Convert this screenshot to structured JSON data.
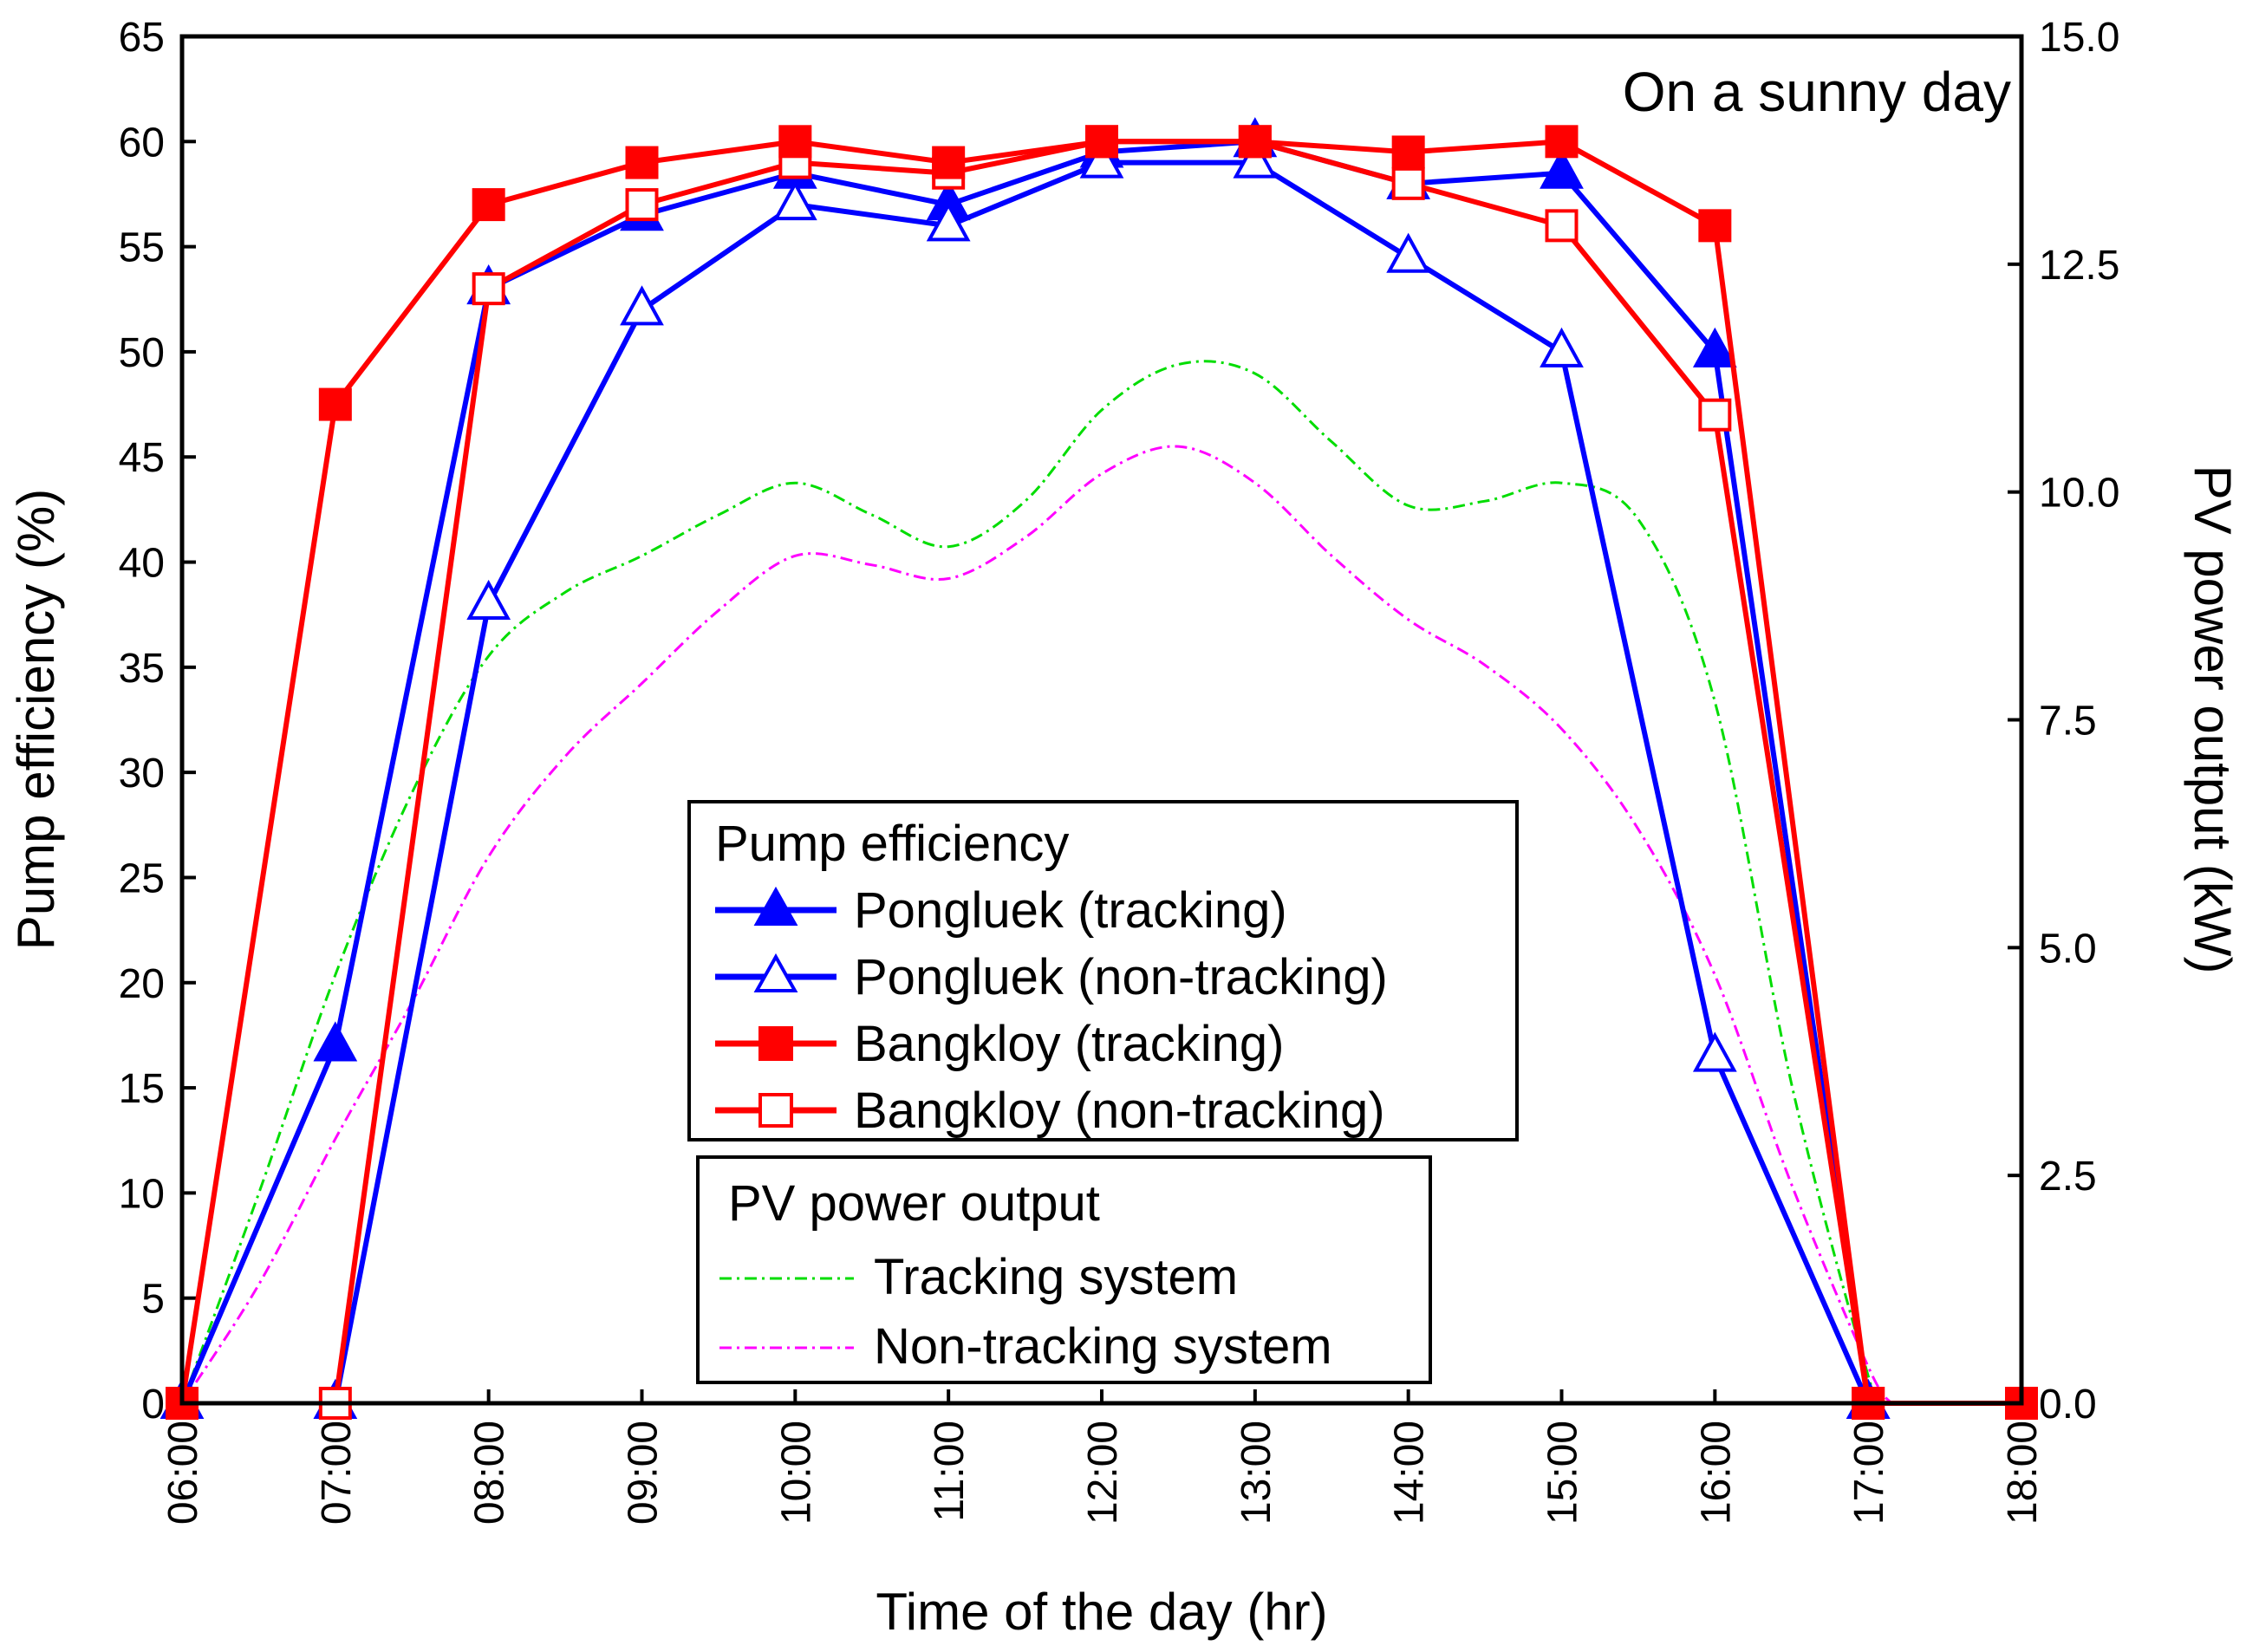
{
  "chart_data": {
    "type": "line",
    "annotation": "On a sunny day",
    "xlabel": "Time of the day (hr)",
    "ylabel_left": "Pump efficiency (%)",
    "ylabel_right": "PV power output (kW)",
    "x_ticks": [
      "06:00",
      "07:00",
      "08:00",
      "09:00",
      "10:00",
      "11:00",
      "12:00",
      "13:00",
      "14:00",
      "15:00",
      "16:00",
      "17:00",
      "18:00"
    ],
    "ylim_left": [
      0,
      65
    ],
    "yticks_left": [
      "0",
      "5",
      "10",
      "15",
      "20",
      "25",
      "30",
      "35",
      "40",
      "45",
      "50",
      "55",
      "60",
      "65"
    ],
    "ylim_right": [
      0,
      15
    ],
    "yticks_right": [
      "0.0",
      "2.5",
      "5.0",
      "7.5",
      "10.0",
      "12.5",
      "15.0"
    ],
    "pump_legend_title": "Pump efficiency",
    "pv_legend_title": "PV power output",
    "pump_series": [
      {
        "name": "Pongluek (tracking)",
        "color": "#0000ff",
        "marker": "triangle",
        "filled": true,
        "values": [
          0,
          17,
          53,
          56.5,
          58.5,
          57,
          59.5,
          60,
          58,
          58.5,
          50,
          0,
          null
        ]
      },
      {
        "name": "Pongluek (non-tracking)",
        "color": "#0000ff",
        "marker": "triangle",
        "filled": false,
        "values": [
          null,
          0,
          38,
          52,
          57,
          56,
          59,
          59,
          54.5,
          50,
          16.5,
          0,
          null
        ]
      },
      {
        "name": "Bangkloy (tracking)",
        "color": "#ff0000",
        "marker": "square",
        "filled": true,
        "values": [
          0,
          47.5,
          57,
          59,
          60,
          59,
          60,
          60,
          59.5,
          60,
          56,
          0,
          0
        ]
      },
      {
        "name": "Bangkloy (non-tracking)",
        "color": "#ff0000",
        "marker": "square",
        "filled": false,
        "values": [
          null,
          0,
          53,
          57,
          59,
          58.5,
          60,
          60,
          58,
          56,
          47,
          0,
          0
        ]
      }
    ],
    "pv_series": [
      {
        "name": "Tracking system",
        "color": "#00dd00",
        "x": [
          6.0,
          6.5,
          7.0,
          7.5,
          8.0,
          8.5,
          9.0,
          9.5,
          10.0,
          10.5,
          11.0,
          11.5,
          12.0,
          12.5,
          13.0,
          13.5,
          14.0,
          14.5,
          15.0,
          15.5,
          16.0,
          16.5,
          17.0,
          17.1
        ],
        "values": [
          0,
          2.3,
          4.7,
          6.7,
          8.2,
          8.9,
          9.3,
          9.75,
          10.1,
          9.75,
          9.4,
          9.9,
          10.9,
          11.4,
          11.3,
          10.55,
          9.85,
          9.9,
          10.1,
          9.7,
          7.7,
          3.5,
          0.3,
          0
        ]
      },
      {
        "name": "Non-tracking system",
        "color": "#ff00ff",
        "x": [
          6.0,
          6.5,
          7.0,
          7.5,
          8.0,
          8.5,
          9.0,
          9.5,
          10.0,
          10.5,
          11.0,
          11.5,
          12.0,
          12.5,
          13.0,
          13.5,
          14.0,
          14.5,
          15.0,
          15.5,
          16.0,
          16.5,
          17.0,
          17.15
        ],
        "values": [
          0,
          1.3,
          2.9,
          4.4,
          6.0,
          7.1,
          7.9,
          8.7,
          9.3,
          9.2,
          9.05,
          9.5,
          10.2,
          10.5,
          10.1,
          9.3,
          8.6,
          8.1,
          7.4,
          6.3,
          4.7,
          2.4,
          0.4,
          0
        ]
      }
    ]
  }
}
